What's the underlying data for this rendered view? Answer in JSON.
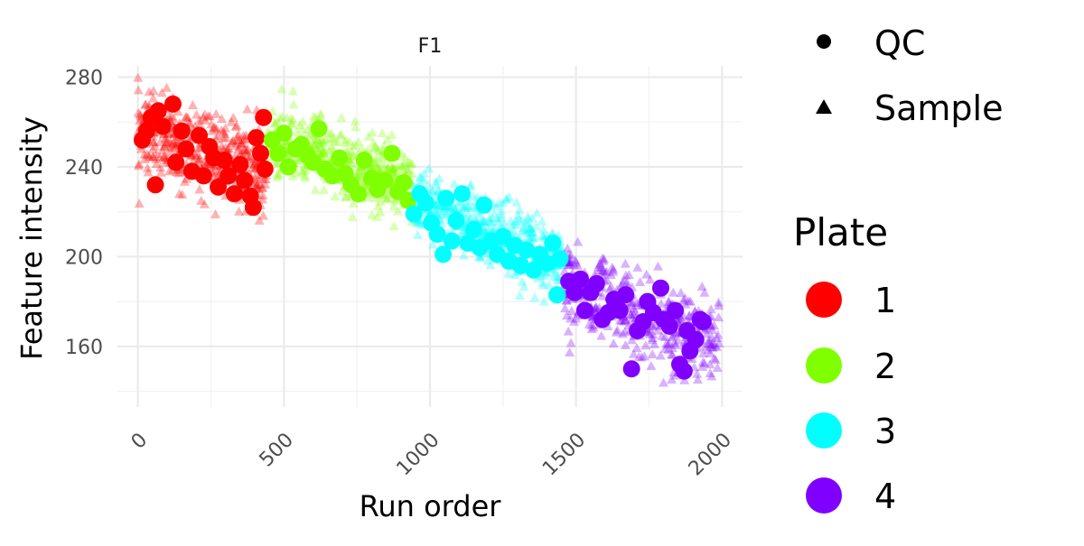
{
  "chart_data": {
    "type": "scatter",
    "facet_label": "F1",
    "xlabel": "Run order",
    "ylabel": "Feature intensity",
    "xlim": [
      -70,
      2070
    ],
    "ylim": [
      133,
      285
    ],
    "x_ticks": [
      0,
      500,
      1000,
      1500,
      2000
    ],
    "y_ticks": [
      160,
      200,
      240,
      280
    ],
    "grid": true,
    "legend_placement": "right",
    "shape_legend": {
      "items": [
        {
          "label": "QC",
          "shape": "circle"
        },
        {
          "label": "Sample",
          "shape": "triangle"
        }
      ]
    },
    "color_legend": {
      "title": "Plate",
      "items": [
        {
          "label": "1",
          "color": "#FF0000"
        },
        {
          "label": "2",
          "color": "#80FF00"
        },
        {
          "label": "3",
          "color": "#00FFFF"
        },
        {
          "label": "4",
          "color": "#8000FF"
        }
      ]
    },
    "sample_clouds": [
      {
        "plate": "1",
        "x_range": [
          0,
          440
        ],
        "y_start": 255,
        "y_end": 238,
        "spread": 9
      },
      {
        "plate": "2",
        "x_range": [
          440,
          940
        ],
        "y_start": 252,
        "y_end": 232,
        "spread": 8
      },
      {
        "plate": "3",
        "x_range": [
          940,
          1460
        ],
        "y_start": 225,
        "y_end": 197,
        "spread": 8
      },
      {
        "plate": "4",
        "x_range": [
          1460,
          1990
        ],
        "y_start": 188,
        "y_end": 160,
        "spread": 9
      }
    ],
    "qc_points": [
      {
        "plate": "1",
        "x": 15,
        "y": 252
      },
      {
        "plate": "1",
        "x": 30,
        "y": 256
      },
      {
        "plate": "1",
        "x": 45,
        "y": 262
      },
      {
        "plate": "1",
        "x": 60,
        "y": 232
      },
      {
        "plate": "1",
        "x": 70,
        "y": 265
      },
      {
        "plate": "1",
        "x": 85,
        "y": 258
      },
      {
        "plate": "1",
        "x": 120,
        "y": 268
      },
      {
        "plate": "1",
        "x": 130,
        "y": 242
      },
      {
        "plate": "1",
        "x": 150,
        "y": 256
      },
      {
        "plate": "1",
        "x": 165,
        "y": 248
      },
      {
        "plate": "1",
        "x": 185,
        "y": 238
      },
      {
        "plate": "1",
        "x": 210,
        "y": 254
      },
      {
        "plate": "1",
        "x": 225,
        "y": 236
      },
      {
        "plate": "1",
        "x": 245,
        "y": 249
      },
      {
        "plate": "1",
        "x": 260,
        "y": 244
      },
      {
        "plate": "1",
        "x": 275,
        "y": 231
      },
      {
        "plate": "1",
        "x": 295,
        "y": 243
      },
      {
        "plate": "1",
        "x": 310,
        "y": 236
      },
      {
        "plate": "1",
        "x": 330,
        "y": 228
      },
      {
        "plate": "1",
        "x": 350,
        "y": 241
      },
      {
        "plate": "1",
        "x": 365,
        "y": 234
      },
      {
        "plate": "1",
        "x": 385,
        "y": 227
      },
      {
        "plate": "1",
        "x": 395,
        "y": 222
      },
      {
        "plate": "1",
        "x": 405,
        "y": 253
      },
      {
        "plate": "1",
        "x": 420,
        "y": 246
      },
      {
        "plate": "1",
        "x": 430,
        "y": 262
      },
      {
        "plate": "1",
        "x": 435,
        "y": 239
      },
      {
        "plate": "2",
        "x": 460,
        "y": 252
      },
      {
        "plate": "2",
        "x": 480,
        "y": 246
      },
      {
        "plate": "2",
        "x": 500,
        "y": 255
      },
      {
        "plate": "2",
        "x": 515,
        "y": 240
      },
      {
        "plate": "2",
        "x": 540,
        "y": 248
      },
      {
        "plate": "2",
        "x": 560,
        "y": 250
      },
      {
        "plate": "2",
        "x": 580,
        "y": 245
      },
      {
        "plate": "2",
        "x": 600,
        "y": 242
      },
      {
        "plate": "2",
        "x": 620,
        "y": 257
      },
      {
        "plate": "2",
        "x": 640,
        "y": 239
      },
      {
        "plate": "2",
        "x": 665,
        "y": 236
      },
      {
        "plate": "2",
        "x": 690,
        "y": 244
      },
      {
        "plate": "2",
        "x": 710,
        "y": 237
      },
      {
        "plate": "2",
        "x": 730,
        "y": 232
      },
      {
        "plate": "2",
        "x": 755,
        "y": 228
      },
      {
        "plate": "2",
        "x": 775,
        "y": 243
      },
      {
        "plate": "2",
        "x": 800,
        "y": 235
      },
      {
        "plate": "2",
        "x": 820,
        "y": 230
      },
      {
        "plate": "2",
        "x": 845,
        "y": 234
      },
      {
        "plate": "2",
        "x": 870,
        "y": 246
      },
      {
        "plate": "2",
        "x": 890,
        "y": 229
      },
      {
        "plate": "2",
        "x": 910,
        "y": 233
      },
      {
        "plate": "2",
        "x": 925,
        "y": 225
      },
      {
        "plate": "3",
        "x": 945,
        "y": 219
      },
      {
        "plate": "3",
        "x": 965,
        "y": 228
      },
      {
        "plate": "3",
        "x": 985,
        "y": 224
      },
      {
        "plate": "3",
        "x": 1005,
        "y": 215
      },
      {
        "plate": "3",
        "x": 1025,
        "y": 210
      },
      {
        "plate": "3",
        "x": 1045,
        "y": 201
      },
      {
        "plate": "3",
        "x": 1055,
        "y": 226
      },
      {
        "plate": "3",
        "x": 1075,
        "y": 207
      },
      {
        "plate": "3",
        "x": 1090,
        "y": 216
      },
      {
        "plate": "3",
        "x": 1110,
        "y": 228
      },
      {
        "plate": "3",
        "x": 1130,
        "y": 206
      },
      {
        "plate": "3",
        "x": 1150,
        "y": 212
      },
      {
        "plate": "3",
        "x": 1170,
        "y": 204
      },
      {
        "plate": "3",
        "x": 1185,
        "y": 223
      },
      {
        "plate": "3",
        "x": 1210,
        "y": 207
      },
      {
        "plate": "3",
        "x": 1230,
        "y": 201
      },
      {
        "plate": "3",
        "x": 1250,
        "y": 209
      },
      {
        "plate": "3",
        "x": 1270,
        "y": 198
      },
      {
        "plate": "3",
        "x": 1290,
        "y": 205
      },
      {
        "plate": "3",
        "x": 1310,
        "y": 196
      },
      {
        "plate": "3",
        "x": 1330,
        "y": 203
      },
      {
        "plate": "3",
        "x": 1355,
        "y": 194
      },
      {
        "plate": "3",
        "x": 1375,
        "y": 201
      },
      {
        "plate": "3",
        "x": 1400,
        "y": 197
      },
      {
        "plate": "3",
        "x": 1420,
        "y": 206
      },
      {
        "plate": "3",
        "x": 1435,
        "y": 183
      },
      {
        "plate": "3",
        "x": 1445,
        "y": 199
      },
      {
        "plate": "4",
        "x": 1475,
        "y": 189
      },
      {
        "plate": "4",
        "x": 1495,
        "y": 184
      },
      {
        "plate": "4",
        "x": 1515,
        "y": 190
      },
      {
        "plate": "4",
        "x": 1530,
        "y": 176
      },
      {
        "plate": "4",
        "x": 1550,
        "y": 184
      },
      {
        "plate": "4",
        "x": 1570,
        "y": 188
      },
      {
        "plate": "4",
        "x": 1590,
        "y": 172
      },
      {
        "plate": "4",
        "x": 1610,
        "y": 175
      },
      {
        "plate": "4",
        "x": 1630,
        "y": 181
      },
      {
        "plate": "4",
        "x": 1650,
        "y": 176
      },
      {
        "plate": "4",
        "x": 1670,
        "y": 183
      },
      {
        "plate": "4",
        "x": 1690,
        "y": 150
      },
      {
        "plate": "4",
        "x": 1710,
        "y": 167
      },
      {
        "plate": "4",
        "x": 1730,
        "y": 171
      },
      {
        "plate": "4",
        "x": 1745,
        "y": 180
      },
      {
        "plate": "4",
        "x": 1765,
        "y": 175
      },
      {
        "plate": "4",
        "x": 1790,
        "y": 186
      },
      {
        "plate": "4",
        "x": 1800,
        "y": 172
      },
      {
        "plate": "4",
        "x": 1820,
        "y": 169
      },
      {
        "plate": "4",
        "x": 1840,
        "y": 176
      },
      {
        "plate": "4",
        "x": 1855,
        "y": 152
      },
      {
        "plate": "4",
        "x": 1870,
        "y": 149
      },
      {
        "plate": "4",
        "x": 1880,
        "y": 167
      },
      {
        "plate": "4",
        "x": 1890,
        "y": 158
      },
      {
        "plate": "4",
        "x": 1910,
        "y": 163
      },
      {
        "plate": "4",
        "x": 1925,
        "y": 172
      },
      {
        "plate": "4",
        "x": 1935,
        "y": 171
      }
    ]
  }
}
